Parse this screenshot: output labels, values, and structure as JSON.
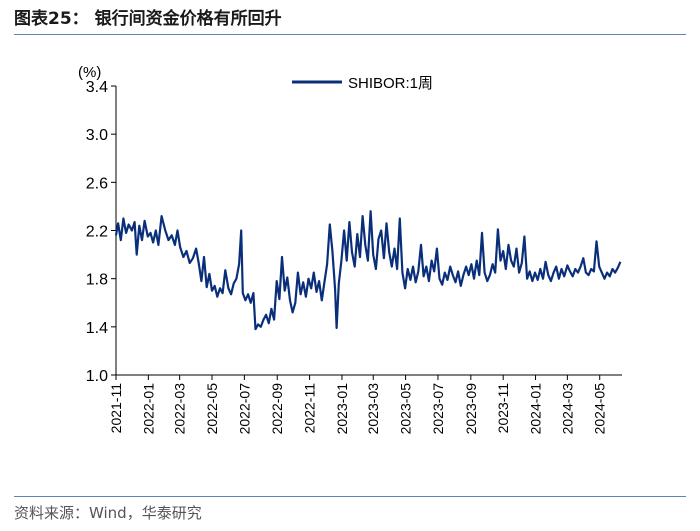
{
  "header": {
    "title": "图表25：  银行间资金价格有所回升"
  },
  "footer": {
    "source": "资料来源：Wind，华泰研究"
  },
  "chart_data": {
    "type": "line",
    "title": "",
    "ylabel": "(%)",
    "xlabel": "",
    "ylim": [
      1.0,
      3.4
    ],
    "yticks": [
      "1.0",
      "1.4",
      "1.8",
      "2.2",
      "2.6",
      "3.0",
      "3.4"
    ],
    "xlim": [
      "2021-11-01",
      "2024-06-12"
    ],
    "xticks": [
      "2021-11",
      "2022-01",
      "2022-03",
      "2022-05",
      "2022-07",
      "2022-09",
      "2022-11",
      "2023-01",
      "2023-03",
      "2023-05",
      "2023-07",
      "2023-09",
      "2023-11",
      "2024-01",
      "2024-03",
      "2024-05"
    ],
    "grid": false,
    "legend_position": "top-center",
    "series": [
      {
        "name": "SHIBOR:1周",
        "color": "#0a2f7a",
        "points": [
          [
            "2021-11-01",
            2.16
          ],
          [
            "2021-11-05",
            2.26
          ],
          [
            "2021-11-10",
            2.12
          ],
          [
            "2021-11-15",
            2.3
          ],
          [
            "2021-11-20",
            2.18
          ],
          [
            "2021-11-25",
            2.25
          ],
          [
            "2021-12-01",
            2.2
          ],
          [
            "2021-12-06",
            2.27
          ],
          [
            "2021-12-10",
            2.0
          ],
          [
            "2021-12-15",
            2.24
          ],
          [
            "2021-12-20",
            2.12
          ],
          [
            "2021-12-25",
            2.28
          ],
          [
            "2021-12-31",
            2.15
          ],
          [
            "2022-01-05",
            2.18
          ],
          [
            "2022-01-10",
            2.1
          ],
          [
            "2022-01-15",
            2.2
          ],
          [
            "2022-01-20",
            2.08
          ],
          [
            "2022-01-26",
            2.32
          ],
          [
            "2022-02-02",
            2.2
          ],
          [
            "2022-02-08",
            2.12
          ],
          [
            "2022-02-14",
            2.16
          ],
          [
            "2022-02-20",
            2.08
          ],
          [
            "2022-02-25",
            2.2
          ],
          [
            "2022-03-02",
            2.06
          ],
          [
            "2022-03-08",
            1.98
          ],
          [
            "2022-03-14",
            2.03
          ],
          [
            "2022-03-20",
            1.93
          ],
          [
            "2022-03-26",
            1.97
          ],
          [
            "2022-04-01",
            2.05
          ],
          [
            "2022-04-06",
            1.93
          ],
          [
            "2022-04-11",
            1.78
          ],
          [
            "2022-04-16",
            1.98
          ],
          [
            "2022-04-21",
            1.73
          ],
          [
            "2022-04-26",
            1.84
          ],
          [
            "2022-05-01",
            1.7
          ],
          [
            "2022-05-06",
            1.74
          ],
          [
            "2022-05-11",
            1.65
          ],
          [
            "2022-05-16",
            1.72
          ],
          [
            "2022-05-21",
            1.68
          ],
          [
            "2022-05-26",
            1.87
          ],
          [
            "2022-06-01",
            1.72
          ],
          [
            "2022-06-06",
            1.67
          ],
          [
            "2022-06-11",
            1.76
          ],
          [
            "2022-06-16",
            1.8
          ],
          [
            "2022-06-21",
            1.92
          ],
          [
            "2022-06-25",
            2.2
          ],
          [
            "2022-06-28",
            1.68
          ],
          [
            "2022-07-03",
            1.62
          ],
          [
            "2022-07-08",
            1.67
          ],
          [
            "2022-07-13",
            1.6
          ],
          [
            "2022-07-18",
            1.68
          ],
          [
            "2022-07-22",
            1.38
          ],
          [
            "2022-07-27",
            1.42
          ],
          [
            "2022-08-01",
            1.4
          ],
          [
            "2022-08-06",
            1.46
          ],
          [
            "2022-08-11",
            1.5
          ],
          [
            "2022-08-16",
            1.43
          ],
          [
            "2022-08-21",
            1.55
          ],
          [
            "2022-08-26",
            1.46
          ],
          [
            "2022-08-31",
            1.78
          ],
          [
            "2022-09-05",
            1.63
          ],
          [
            "2022-09-10",
            1.98
          ],
          [
            "2022-09-15",
            1.7
          ],
          [
            "2022-09-20",
            1.81
          ],
          [
            "2022-09-25",
            1.62
          ],
          [
            "2022-09-30",
            1.52
          ],
          [
            "2022-10-05",
            1.6
          ],
          [
            "2022-10-10",
            1.85
          ],
          [
            "2022-10-15",
            1.67
          ],
          [
            "2022-10-20",
            1.77
          ],
          [
            "2022-10-25",
            1.65
          ],
          [
            "2022-10-30",
            1.8
          ],
          [
            "2022-11-04",
            1.72
          ],
          [
            "2022-11-09",
            1.85
          ],
          [
            "2022-11-14",
            1.69
          ],
          [
            "2022-11-19",
            1.78
          ],
          [
            "2022-11-24",
            1.62
          ],
          [
            "2022-11-29",
            1.77
          ],
          [
            "2022-12-04",
            1.92
          ],
          [
            "2022-12-09",
            2.25
          ],
          [
            "2022-12-14",
            2.03
          ],
          [
            "2022-12-19",
            1.71
          ],
          [
            "2022-12-22",
            1.39
          ],
          [
            "2022-12-26",
            1.76
          ],
          [
            "2022-12-31",
            1.95
          ],
          [
            "2023-01-05",
            2.2
          ],
          [
            "2023-01-10",
            1.95
          ],
          [
            "2023-01-15",
            2.27
          ],
          [
            "2023-01-20",
            2.02
          ],
          [
            "2023-01-25",
            1.9
          ],
          [
            "2023-01-30",
            2.17
          ],
          [
            "2023-02-04",
            1.98
          ],
          [
            "2023-02-09",
            2.32
          ],
          [
            "2023-02-14",
            2.08
          ],
          [
            "2023-02-19",
            1.95
          ],
          [
            "2023-02-24",
            2.36
          ],
          [
            "2023-03-01",
            2.0
          ],
          [
            "2023-03-06",
            1.88
          ],
          [
            "2023-03-11",
            2.13
          ],
          [
            "2023-03-16",
            2.2
          ],
          [
            "2023-03-21",
            1.97
          ],
          [
            "2023-03-26",
            2.26
          ],
          [
            "2023-03-31",
            2.02
          ],
          [
            "2023-04-05",
            1.9
          ],
          [
            "2023-04-10",
            2.05
          ],
          [
            "2023-04-15",
            1.88
          ],
          [
            "2023-04-20",
            2.3
          ],
          [
            "2023-04-25",
            1.85
          ],
          [
            "2023-04-30",
            1.72
          ],
          [
            "2023-05-05",
            1.88
          ],
          [
            "2023-05-10",
            1.79
          ],
          [
            "2023-05-15",
            1.9
          ],
          [
            "2023-05-20",
            1.77
          ],
          [
            "2023-05-25",
            1.86
          ],
          [
            "2023-05-30",
            2.08
          ],
          [
            "2023-06-04",
            1.82
          ],
          [
            "2023-06-09",
            1.9
          ],
          [
            "2023-06-14",
            1.78
          ],
          [
            "2023-06-19",
            1.95
          ],
          [
            "2023-06-24",
            1.86
          ],
          [
            "2023-06-29",
            2.05
          ],
          [
            "2023-07-04",
            1.8
          ],
          [
            "2023-07-09",
            1.75
          ],
          [
            "2023-07-14",
            1.85
          ],
          [
            "2023-07-19",
            1.79
          ],
          [
            "2023-07-24",
            1.9
          ],
          [
            "2023-07-29",
            1.83
          ],
          [
            "2023-08-03",
            1.77
          ],
          [
            "2023-08-08",
            1.86
          ],
          [
            "2023-08-13",
            1.74
          ],
          [
            "2023-08-18",
            1.83
          ],
          [
            "2023-08-23",
            1.9
          ],
          [
            "2023-08-28",
            1.83
          ],
          [
            "2023-09-02",
            1.92
          ],
          [
            "2023-09-07",
            1.8
          ],
          [
            "2023-09-12",
            1.95
          ],
          [
            "2023-09-17",
            1.83
          ],
          [
            "2023-09-22",
            2.18
          ],
          [
            "2023-09-27",
            1.85
          ],
          [
            "2023-10-02",
            1.78
          ],
          [
            "2023-10-07",
            1.83
          ],
          [
            "2023-10-12",
            1.92
          ],
          [
            "2023-10-17",
            1.85
          ],
          [
            "2023-10-22",
            2.21
          ],
          [
            "2023-10-27",
            1.95
          ],
          [
            "2023-11-01",
            2.03
          ],
          [
            "2023-11-06",
            1.88
          ],
          [
            "2023-11-11",
            2.08
          ],
          [
            "2023-11-16",
            1.95
          ],
          [
            "2023-11-21",
            1.9
          ],
          [
            "2023-11-26",
            2.05
          ],
          [
            "2023-12-01",
            1.85
          ],
          [
            "2023-12-06",
            1.93
          ],
          [
            "2023-12-11",
            2.15
          ],
          [
            "2023-12-16",
            1.8
          ],
          [
            "2023-12-21",
            1.86
          ],
          [
            "2023-12-26",
            1.78
          ],
          [
            "2023-12-31",
            1.85
          ],
          [
            "2024-01-05",
            1.79
          ],
          [
            "2024-01-10",
            1.88
          ],
          [
            "2024-01-15",
            1.8
          ],
          [
            "2024-01-20",
            1.94
          ],
          [
            "2024-01-25",
            1.83
          ],
          [
            "2024-01-30",
            1.78
          ],
          [
            "2024-02-04",
            1.85
          ],
          [
            "2024-02-09",
            1.9
          ],
          [
            "2024-02-14",
            1.8
          ],
          [
            "2024-02-19",
            1.88
          ],
          [
            "2024-02-24",
            1.82
          ],
          [
            "2024-03-01",
            1.91
          ],
          [
            "2024-03-06",
            1.86
          ],
          [
            "2024-03-11",
            1.82
          ],
          [
            "2024-03-16",
            1.88
          ],
          [
            "2024-03-21",
            1.85
          ],
          [
            "2024-03-26",
            1.9
          ],
          [
            "2024-03-31",
            1.97
          ],
          [
            "2024-04-05",
            1.85
          ],
          [
            "2024-04-10",
            1.83
          ],
          [
            "2024-04-15",
            1.88
          ],
          [
            "2024-04-20",
            1.86
          ],
          [
            "2024-04-25",
            2.11
          ],
          [
            "2024-04-30",
            1.9
          ],
          [
            "2024-05-05",
            1.85
          ],
          [
            "2024-05-10",
            1.8
          ],
          [
            "2024-05-15",
            1.85
          ],
          [
            "2024-05-20",
            1.82
          ],
          [
            "2024-05-25",
            1.88
          ],
          [
            "2024-05-30",
            1.85
          ],
          [
            "2024-06-04",
            1.89
          ],
          [
            "2024-06-09",
            1.94
          ]
        ]
      }
    ]
  }
}
